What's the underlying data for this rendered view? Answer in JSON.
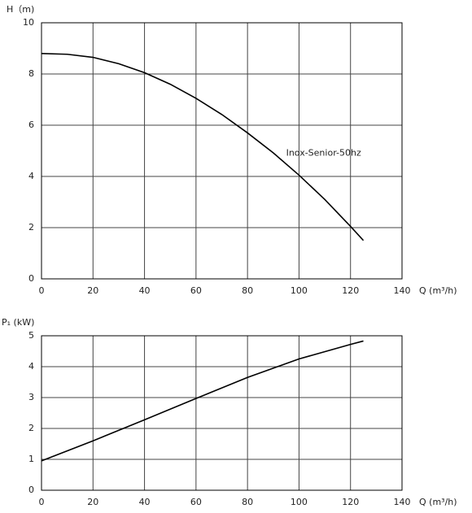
{
  "chart_data": [
    {
      "type": "line",
      "y_label": "H（m)",
      "x_label": "Q (m³/h)",
      "annotation": "Inox-Senior-50hz",
      "x": [
        0,
        10,
        20,
        30,
        40,
        50,
        60,
        70,
        80,
        90,
        100,
        110,
        120,
        125
      ],
      "series": [
        {
          "name": "Inox-Senior-50hz",
          "color": "#000000",
          "values": [
            8.8,
            8.77,
            8.65,
            8.4,
            8.05,
            7.6,
            7.05,
            6.42,
            5.7,
            4.92,
            4.05,
            3.1,
            2.05,
            1.5
          ]
        }
      ],
      "xlim": [
        0,
        140
      ],
      "ylim": [
        0,
        10
      ],
      "xticks": [
        0,
        20,
        40,
        60,
        80,
        100,
        120,
        140
      ],
      "yticks": [
        0,
        2,
        4,
        6,
        8,
        10
      ],
      "grid": true
    },
    {
      "type": "line",
      "y_label": "P₁ (kW)",
      "x_label": "Q (m³/h)",
      "x": [
        0,
        20,
        40,
        60,
        80,
        100,
        120,
        125
      ],
      "series": [
        {
          "name": "P1",
          "color": "#000000",
          "values": [
            0.95,
            1.6,
            2.28,
            2.97,
            3.65,
            4.25,
            4.72,
            4.83
          ]
        }
      ],
      "xlim": [
        0,
        140
      ],
      "ylim": [
        0,
        5
      ],
      "xticks": [
        0,
        20,
        40,
        60,
        80,
        100,
        120,
        140
      ],
      "yticks": [
        0,
        1,
        2,
        3,
        4,
        5
      ],
      "grid": true
    }
  ]
}
